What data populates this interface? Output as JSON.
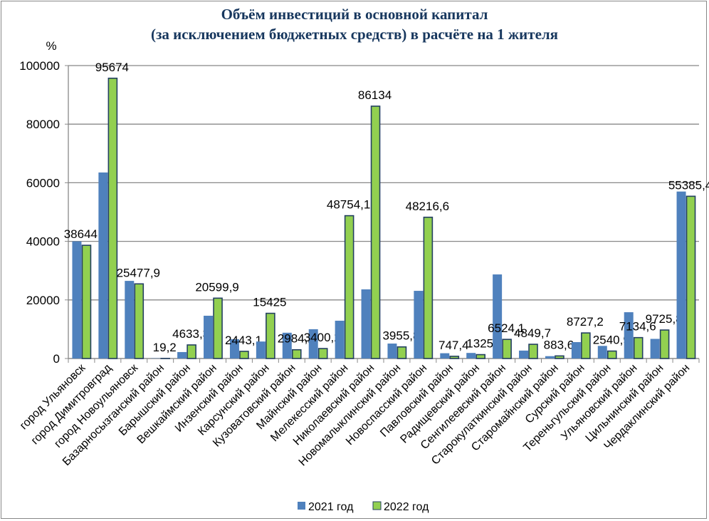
{
  "chart_data": {
    "type": "bar",
    "title": "Объём инвестиций в основной капитал",
    "subtitle": "(за исключением бюджетных средств) в расчёте на 1 жителя",
    "ylabel": "%",
    "xlabel": "",
    "ylim": [
      0,
      100000
    ],
    "yticks": [
      "0",
      "20000",
      "40000",
      "60000",
      "80000",
      "100000"
    ],
    "grid": true,
    "legend_position": "bottom",
    "categories": [
      "город Ульяновск",
      "город Димитровград",
      "город Новоульяновск",
      "Базарносызганский район",
      "Барышский район",
      "Вешкаймский район",
      "Инзенский район",
      "Карсунский район",
      "Кузоватовский район",
      "Майнский район",
      "Мелекесский район",
      "Николаевский район",
      "Новомалыклинский район",
      "Новоспасский район",
      "Павловский район",
      "Радищевский район",
      "Сенгилеевский район",
      "Старокулаткинский район",
      "Старомайнский район",
      "Сурский район",
      "Тереньгульский район",
      "Ульяновский район",
      "Цильнинский район",
      "Чердаклинский район"
    ],
    "series": [
      {
        "name": "2021 год",
        "color": "#4f81bd",
        "values": [
          40000,
          63500,
          26500,
          100,
          2200,
          14600,
          6600,
          5800,
          8800,
          10000,
          12900,
          23600,
          5100,
          23100,
          1800,
          1900,
          28700,
          2700,
          800,
          5600,
          4300,
          15800,
          6700,
          57000
        ]
      },
      {
        "name": "2022 год",
        "color": "#92d050",
        "values": [
          38644.3,
          95674,
          25477.9,
          19.2,
          4633.3,
          20599.9,
          2443.1,
          15425,
          2984.2,
          3400.2,
          48754.1,
          86134,
          3955.8,
          48216.6,
          747.4,
          1325,
          6524.1,
          4849.7,
          883.6,
          8727.2,
          2540.9,
          7134.6,
          9725.8,
          55385.4
        ],
        "data_labels": [
          "38644,3",
          "95674",
          "25477,9",
          "19,2",
          "4633,3",
          "20599,9",
          "2443,1",
          "15425",
          "2984,2",
          "3400,2",
          "48754,1",
          "86134",
          "3955,8",
          "48216,6",
          "747,4",
          "1325",
          "6524,1",
          "4849,7",
          "883,6",
          "8727,2",
          "2540,9",
          "7134,6",
          "9725,8",
          "55385,4"
        ]
      }
    ]
  }
}
